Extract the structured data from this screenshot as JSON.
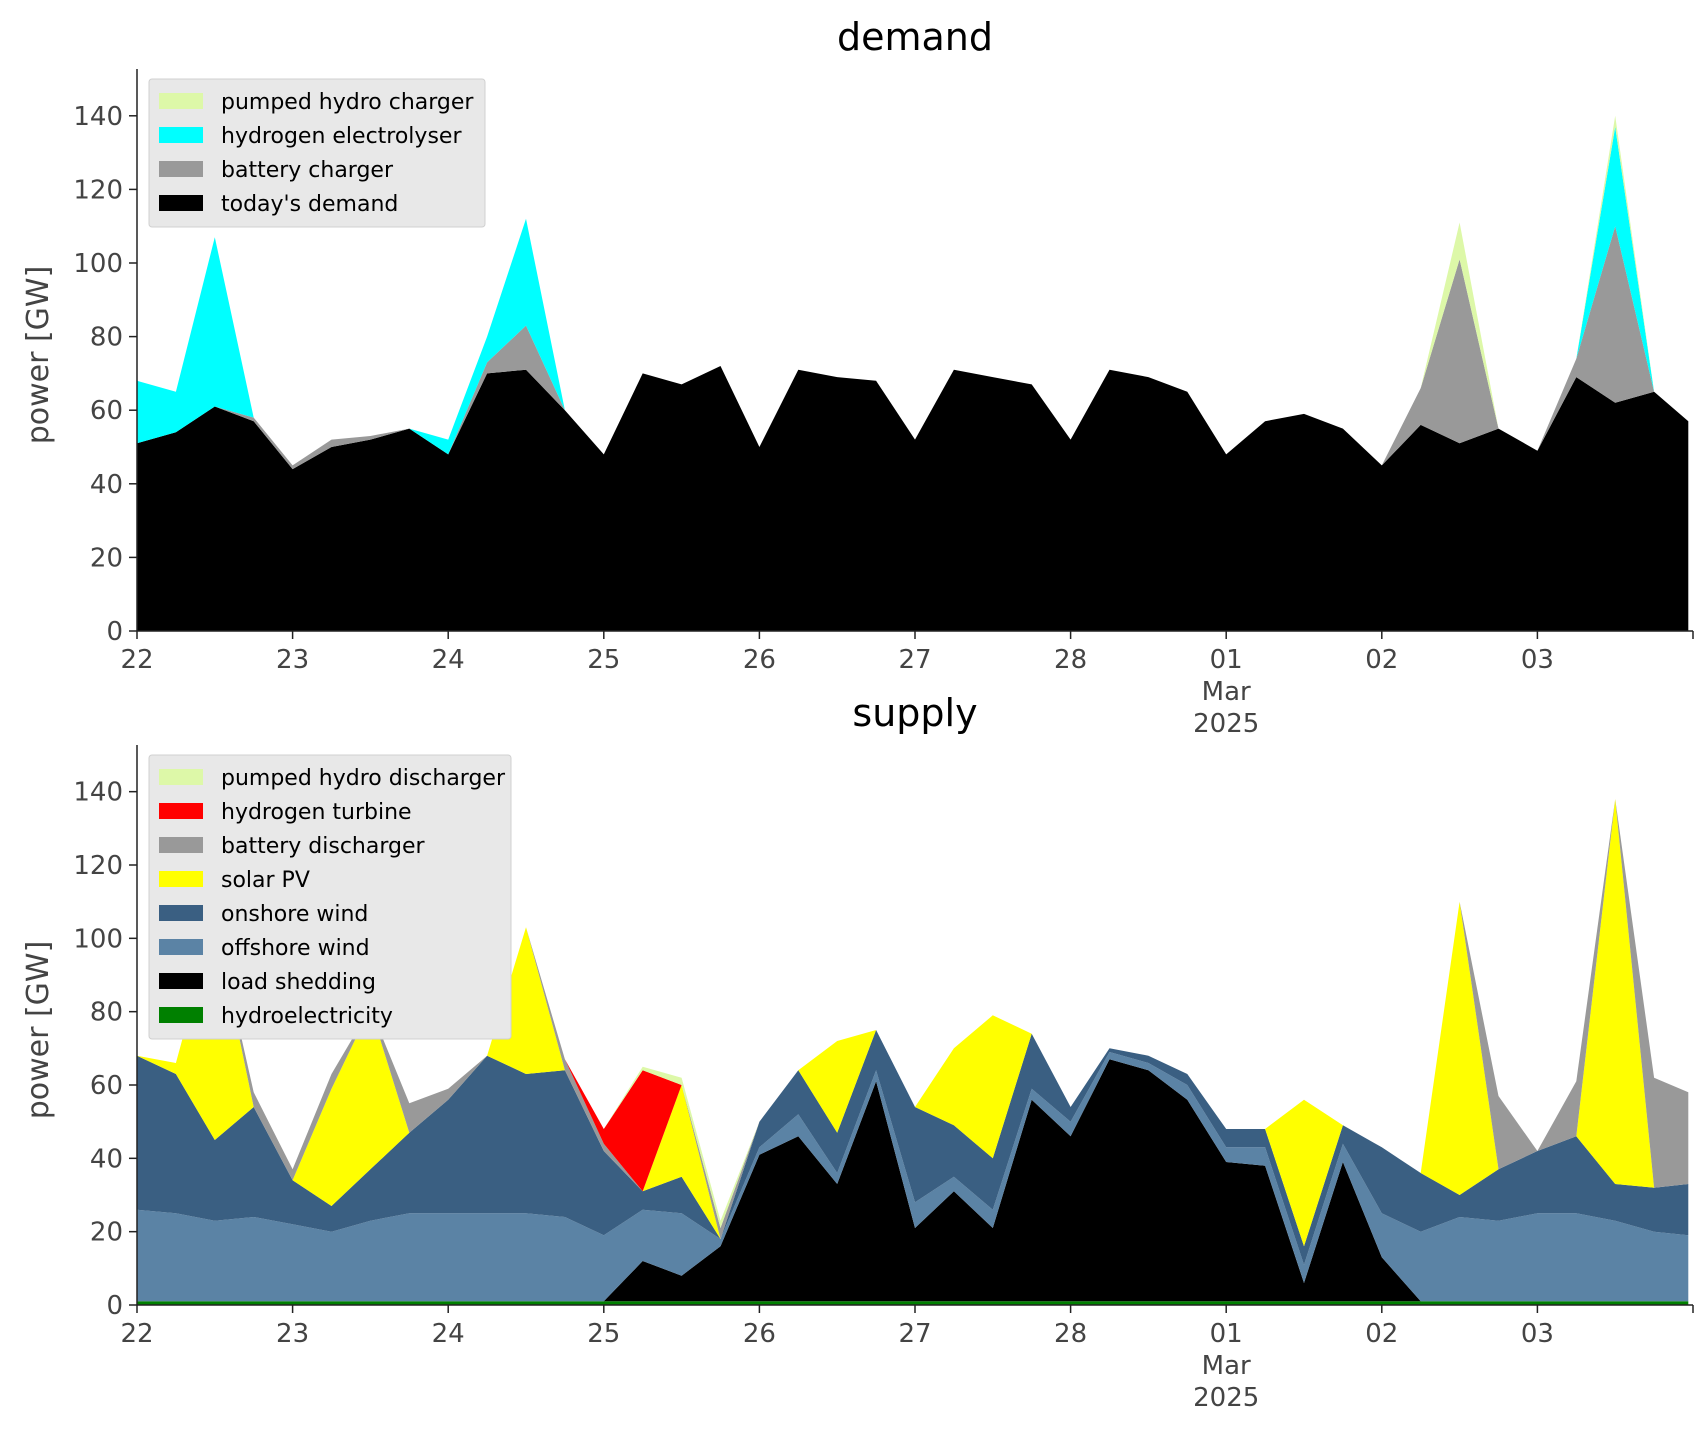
{
  "chart_data": [
    {
      "type": "area",
      "stacked": true,
      "title": "demand",
      "ylabel": "power [GW]",
      "ylim": [
        0,
        150
      ],
      "yticks": [
        0,
        20,
        40,
        60,
        80,
        100,
        120,
        140
      ],
      "xlim": [
        0,
        10
      ],
      "xticks": [
        {
          "x": 0,
          "label": "22"
        },
        {
          "x": 1,
          "label": "23"
        },
        {
          "x": 2,
          "label": "24"
        },
        {
          "x": 3,
          "label": "25"
        },
        {
          "x": 4,
          "label": "26"
        },
        {
          "x": 5,
          "label": "27"
        },
        {
          "x": 6,
          "label": "28"
        },
        {
          "x": 7,
          "label": "01",
          "sub": [
            "Mar",
            "2025"
          ]
        },
        {
          "x": 8,
          "label": "02"
        },
        {
          "x": 9,
          "label": "03"
        }
      ],
      "legend": "top-left",
      "grid": false,
      "x": [
        0,
        0.25,
        0.5,
        0.75,
        1,
        1.25,
        1.5,
        1.75,
        2,
        2.25,
        2.5,
        2.75,
        3,
        3.25,
        3.5,
        3.75,
        4,
        4.25,
        4.5,
        4.75,
        5,
        5.25,
        5.5,
        5.75,
        6,
        6.25,
        6.5,
        6.75,
        7,
        7.25,
        7.5,
        7.75,
        8,
        8.25,
        8.5,
        8.75,
        9,
        9.25,
        9.5,
        9.75,
        9.97
      ],
      "series": [
        {
          "name": "today's demand",
          "color": "#000000",
          "values": [
            51,
            54,
            61,
            57,
            44,
            50,
            52,
            55,
            48,
            70,
            71,
            60,
            48,
            70,
            67,
            72,
            50,
            71,
            69,
            68,
            52,
            71,
            69,
            67,
            52,
            71,
            69,
            65,
            48,
            57,
            59,
            55,
            45,
            56,
            51,
            55,
            49,
            69,
            62,
            65,
            57
          ]
        },
        {
          "name": "battery charger",
          "color": "#999999",
          "values": [
            0,
            0,
            0,
            1,
            1,
            2,
            1,
            0,
            0,
            3,
            12,
            0,
            0,
            0,
            0,
            0,
            0,
            0,
            0,
            0,
            0,
            0,
            0,
            0,
            0,
            0,
            0,
            0,
            0,
            0,
            0,
            0,
            0,
            10,
            50,
            0,
            0,
            5,
            48,
            0,
            0
          ]
        },
        {
          "name": "hydrogen electrolyser",
          "color": "#00ffff",
          "values": [
            17,
            11,
            46,
            0,
            0,
            0,
            0,
            0,
            4,
            7,
            29,
            0,
            0,
            0,
            0,
            0,
            0,
            0,
            0,
            0,
            0,
            0,
            0,
            0,
            0,
            0,
            0,
            0,
            0,
            0,
            0,
            0,
            0,
            0,
            0,
            0,
            0,
            0,
            27,
            0,
            0
          ]
        },
        {
          "name": "pumped hydro charger",
          "color": "#ddf8a8",
          "values": [
            0,
            0,
            0,
            0,
            0,
            0,
            0,
            0,
            0,
            0,
            0,
            0,
            0,
            0,
            0,
            0,
            0,
            0,
            0,
            0,
            0,
            0,
            0,
            0,
            0,
            0,
            0,
            0,
            0,
            0,
            0,
            0,
            0,
            0,
            10,
            0,
            0,
            0,
            3,
            0,
            0
          ]
        }
      ]
    },
    {
      "type": "area",
      "stacked": true,
      "title": "supply",
      "ylabel": "power [GW]",
      "ylim": [
        0,
        150
      ],
      "yticks": [
        0,
        20,
        40,
        60,
        80,
        100,
        120,
        140
      ],
      "xlim": [
        0,
        10
      ],
      "xticks": [
        {
          "x": 0,
          "label": "22"
        },
        {
          "x": 1,
          "label": "23"
        },
        {
          "x": 2,
          "label": "24"
        },
        {
          "x": 3,
          "label": "25"
        },
        {
          "x": 4,
          "label": "26"
        },
        {
          "x": 5,
          "label": "27"
        },
        {
          "x": 6,
          "label": "28"
        },
        {
          "x": 7,
          "label": "01",
          "sub": [
            "Mar",
            "2025"
          ]
        },
        {
          "x": 8,
          "label": "02"
        },
        {
          "x": 9,
          "label": "03"
        }
      ],
      "legend": "top-left",
      "grid": false,
      "x": [
        0,
        0.25,
        0.5,
        0.75,
        1,
        1.25,
        1.5,
        1.75,
        2,
        2.25,
        2.5,
        2.75,
        3,
        3.25,
        3.5,
        3.75,
        4,
        4.25,
        4.5,
        4.75,
        5,
        5.25,
        5.5,
        5.75,
        6,
        6.25,
        6.5,
        6.75,
        7,
        7.25,
        7.5,
        7.75,
        8,
        8.25,
        8.5,
        8.75,
        9,
        9.25,
        9.5,
        9.75,
        9.97
      ],
      "series": [
        {
          "name": "hydroelectricity",
          "color": "#008000",
          "values": [
            1,
            1,
            1,
            1,
            1,
            1,
            1,
            1,
            1,
            1,
            1,
            1,
            1,
            1,
            1,
            1,
            1,
            1,
            1,
            1,
            1,
            1,
            1,
            1,
            1,
            1,
            1,
            1,
            1,
            1,
            1,
            1,
            1,
            1,
            1,
            1,
            1,
            1,
            1,
            1,
            1
          ]
        },
        {
          "name": "load shedding",
          "color": "#000000",
          "values": [
            0,
            0,
            0,
            0,
            0,
            0,
            0,
            0,
            0,
            0,
            0,
            0,
            0,
            11,
            7,
            15,
            40,
            45,
            32,
            60,
            20,
            30,
            20,
            55,
            45,
            66,
            63,
            55,
            38,
            37,
            5,
            38,
            12,
            0,
            0,
            0,
            0,
            0,
            0,
            0,
            0
          ]
        },
        {
          "name": "offshore wind",
          "color": "#5b83a5",
          "values": [
            25,
            24,
            22,
            23,
            21,
            19,
            22,
            24,
            24,
            24,
            24,
            23,
            18,
            14,
            17,
            2,
            2,
            6,
            3,
            3,
            7,
            4,
            5,
            3,
            4,
            2,
            2,
            4,
            4,
            5,
            5,
            5,
            12,
            19,
            23,
            22,
            24,
            24,
            22,
            19,
            18
          ]
        },
        {
          "name": "onshore wind",
          "color": "#3a5f82",
          "values": [
            42,
            38,
            22,
            30,
            12,
            7,
            14,
            22,
            31,
            43,
            38,
            40,
            23,
            5,
            10,
            0,
            7,
            12,
            11,
            11,
            26,
            14,
            14,
            15,
            4,
            1,
            2,
            3,
            5,
            5,
            5,
            5,
            18,
            16,
            6,
            14,
            17,
            21,
            10,
            12,
            14
          ]
        },
        {
          "name": "solar PV",
          "color": "#ffff00",
          "values": [
            0,
            3,
            60,
            0,
            0,
            32,
            44,
            0,
            0,
            0,
            40,
            0,
            0,
            0,
            25,
            0,
            0,
            0,
            25,
            0,
            0,
            21,
            39,
            0,
            0,
            0,
            0,
            0,
            0,
            0,
            40,
            0,
            0,
            0,
            80,
            0,
            0,
            0,
            105,
            0,
            0
          ]
        },
        {
          "name": "battery discharger",
          "color": "#999999",
          "values": [
            0,
            0,
            0,
            4,
            3,
            4,
            0,
            8,
            3,
            0,
            0,
            3,
            2,
            0,
            0,
            3,
            0,
            0,
            0,
            0,
            0,
            0,
            0,
            0,
            0,
            0,
            0,
            0,
            0,
            0,
            0,
            0,
            0,
            0,
            0,
            20,
            0,
            15,
            0,
            30,
            25
          ]
        },
        {
          "name": "hydrogen turbine",
          "color": "#ff0000",
          "values": [
            0,
            0,
            0,
            0,
            0,
            0,
            0,
            0,
            0,
            0,
            0,
            0,
            4,
            33,
            0,
            0,
            0,
            0,
            0,
            0,
            0,
            0,
            0,
            0,
            0,
            0,
            0,
            0,
            0,
            0,
            0,
            0,
            0,
            0,
            0,
            0,
            0,
            0,
            0,
            0,
            0
          ]
        },
        {
          "name": "pumped hydro discharger",
          "color": "#ddf8a8",
          "values": [
            0,
            0,
            0,
            0,
            0,
            0,
            0,
            0,
            0,
            0,
            0,
            0,
            0,
            1,
            2,
            2,
            0,
            0,
            0,
            0,
            0,
            0,
            0,
            0,
            0,
            0,
            0,
            0,
            0,
            0,
            0,
            0,
            0,
            0,
            0,
            0,
            0,
            0,
            0,
            0,
            0
          ]
        }
      ],
      "legend_order": [
        "pumped hydro discharger",
        "hydrogen turbine",
        "battery discharger",
        "solar PV",
        "onshore wind",
        "offshore wind",
        "load shedding",
        "hydroelectricity"
      ]
    }
  ]
}
